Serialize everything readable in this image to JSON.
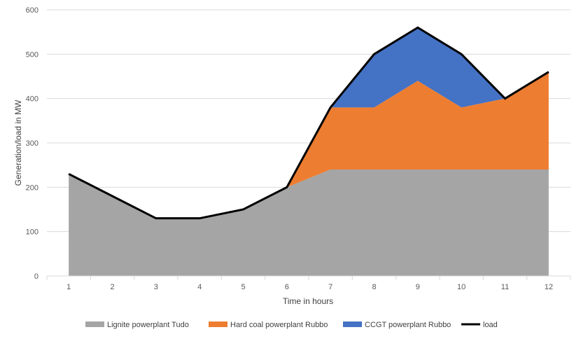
{
  "chart_data": {
    "type": "area",
    "title": "",
    "xlabel": "Time in hours",
    "ylabel": "Generation/load in MW",
    "x": [
      1,
      2,
      3,
      4,
      5,
      6,
      7,
      8,
      9,
      10,
      11,
      12
    ],
    "ylim": [
      0,
      600
    ],
    "yticks": [
      0,
      100,
      200,
      300,
      400,
      500,
      600
    ],
    "grid": true,
    "legend_position": "bottom",
    "series": [
      {
        "name": "Lignite powerplant Tudo",
        "kind": "stacked-area",
        "color": "#a5a5a5",
        "values": [
          230,
          180,
          130,
          130,
          150,
          200,
          240,
          240,
          240,
          240,
          240,
          240
        ]
      },
      {
        "name": "Hard coal powerplant Rubbo",
        "kind": "stacked-area",
        "color": "#ed7d31",
        "values": [
          0,
          0,
          0,
          0,
          0,
          0,
          140,
          140,
          200,
          140,
          160,
          220
        ]
      },
      {
        "name": "CCGT powerplant Rubbo",
        "kind": "stacked-area",
        "color": "#4472c4",
        "values": [
          0,
          0,
          0,
          0,
          0,
          0,
          0,
          120,
          120,
          120,
          0,
          0
        ]
      },
      {
        "name": "load",
        "kind": "line",
        "color": "#000000",
        "values": [
          230,
          180,
          130,
          130,
          150,
          200,
          380,
          500,
          560,
          500,
          400,
          460
        ]
      }
    ]
  }
}
